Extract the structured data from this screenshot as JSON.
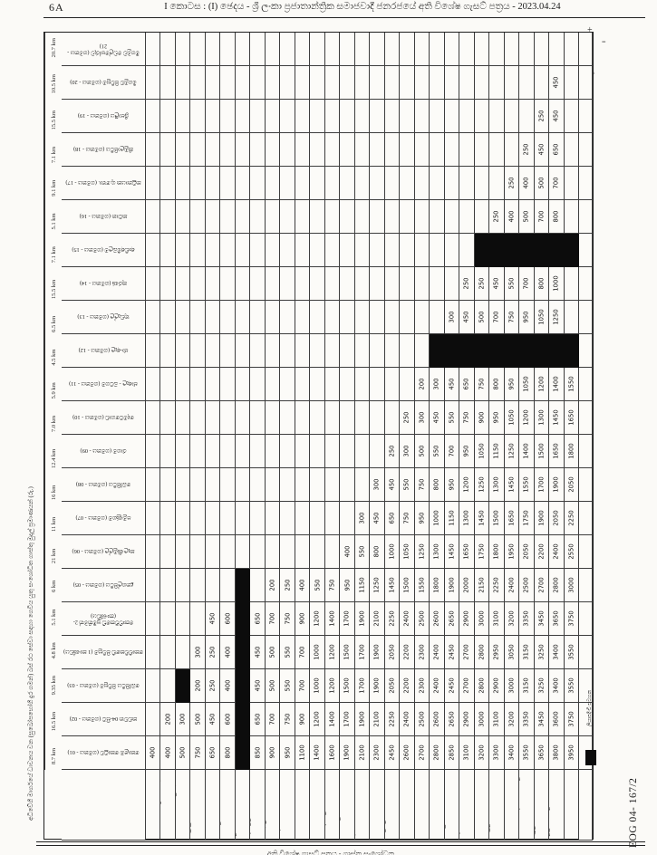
{
  "page": {
    "number": "6A",
    "title": "I කොටස : (I) ඡෙදය - ශ්‍රී ලංකා ප්‍රජාතාන්ත්‍රික සමාජවාදී ජනරජයේ අති විශේෂ ගැසට් පත්‍රය - 2023.04.24"
  },
  "table": {
    "left_title": "අධිවේගී මාර්ගයේ ධාවනය වන (සුඛෝපභෝගී දුර ගමන්) බස් රථ සේවා සඳහා ගෙවිය යුතු සංශෝධිත ගාස්තු මුදල් ප්‍රමාණයන් (රු.)",
    "km_distances": [
      "20.7 km",
      "10.5 km",
      "15.5 km",
      "7.1 km",
      "9.1 km",
      "5.1 km",
      "7.1 km",
      "15.5 km",
      "6.5 km",
      "4.5 km",
      "5.9 km",
      "7.0 km",
      "12.4 km",
      "16 km",
      "11 km",
      "21 km",
      "6 km",
      "5.1 km",
      "4.8 km",
      "9.35 km",
      "16.5 km",
      "8.7 km"
    ],
    "row_labels": [
      "මීගමුව ඩෙල්පෝරුව (ගමනය - 21)",
      "මීගමුව පිවිසුම (ගමනය - 20)",
      "ශ්‍රීපාලිය (ගමනය - 19)",
      "කිඹුලාපිටිය (ගමනය - 18)",
      "කටුනායක ගු.තො. (ගමනය - 17)",
      "කටාන (ගමනය - 16)",
      "ආඬිඅම්බලම (ගමනය - 15)",
      "කුරණ (ගමනය - 14)",
      "තුඩැල්ල (ගමනය - 13)",
      "ජා-ඇල (ගමනය - 12)",
      "ජාඇල - බටගම (ගමනය - 11)",
      "දෙමටගොඩ (ගමනය - 10)",
      "රාගම (ගමනය - 09)",
      "බෝපිටිය (ගමනය - 08)",
      "පමුණුගම (ගමනය - 07)",
      "කැලණිමුල්ල (ගමනය - 06)",
      "දුනගල්පිටිය (ගමනය - 05)",
      "කොච්චිකඩේ ප්‍රමිතිමත් 2-(කාණ්ඩය)",
      "කොච්චිකඩේ පිවිසුම (1 කාණ්ඩය)",
      "බෝපිටිය පිවිසුම (ගමනය - 03)",
      "කඩවත 04-සිට (ගමනය - 02)",
      "කොළඹ කොටුව (ගමනය - 01)"
    ],
    "column_labels": [
      "කි-මී",
      "කොච්චිකඩේ ප්‍රමිතිමත් (කාණ්ඩ 1)",
      "කොච්චිකඩේ පිවිසුම (කාණ්ඩ 2)",
      "පමුණුගම",
      "බෝපිටිය",
      "දුනගල්පිටිය",
      "උස්වැටකෙයියාව",
      "තුඩැල්ල",
      "ජා-ඇල",
      "කඳාන",
      "බටුවත්ත",
      "මහබාගේ",
      "මත්තුමගල",
      "කෙරවලපිටිය",
      "දික්ඕවිට",
      "හේකිත්ත",
      "බලගල",
      "පෑගොඩ",
      "කොස්වත්ත",
      "කඩවත - ගොඩපිටිය",
      "මීගමුව",
      "කුරණ",
      "වේයන්ගොඩ",
      "කිඹුලාපිටිය",
      "කටාන",
      "කටුනායක ගුවන්තොටුපළ",
      "දිවුලපිටිය",
      "උඩුගම්පොළ",
      "ගම්පහ මීගේ"
    ],
    "fare_matrix": [
      [
        "",
        "",
        "",
        "",
        "",
        "",
        "",
        "",
        "",
        "",
        "",
        "",
        "",
        "",
        "",
        "",
        "",
        "",
        "",
        "",
        "",
        "",
        "",
        "",
        "",
        "",
        "",
        "",
        ""
      ],
      [
        "",
        "",
        "",
        "",
        "",
        "",
        "",
        "",
        "",
        "",
        "",
        "",
        "",
        "",
        "",
        "",
        "",
        "",
        "",
        "",
        "",
        "",
        "",
        "",
        "",
        "",
        "",
        "450",
        ""
      ],
      [
        "",
        "",
        "",
        "",
        "",
        "",
        "",
        "",
        "",
        "",
        "",
        "",
        "",
        "",
        "",
        "",
        "",
        "",
        "",
        "",
        "",
        "",
        "",
        "",
        "",
        "",
        "250",
        "450",
        ""
      ],
      [
        "",
        "",
        "",
        "",
        "",
        "",
        "",
        "",
        "",
        "",
        "",
        "",
        "",
        "",
        "",
        "",
        "",
        "",
        "",
        "",
        "",
        "",
        "",
        "",
        "",
        "250",
        "450",
        "650",
        ""
      ],
      [
        "",
        "",
        "",
        "",
        "",
        "",
        "",
        "",
        "",
        "",
        "",
        "",
        "",
        "",
        "",
        "",
        "",
        "",
        "",
        "",
        "",
        "",
        "",
        "",
        "250",
        "400",
        "500",
        "700",
        ""
      ],
      [
        "",
        "",
        "",
        "",
        "",
        "",
        "",
        "",
        "",
        "",
        "",
        "",
        "",
        "",
        "",
        "",
        "",
        "",
        "",
        "",
        "",
        "",
        "",
        "250",
        "400",
        "500",
        "700",
        "800",
        ""
      ],
      [
        "",
        "",
        "",
        "",
        "",
        "",
        "",
        "",
        "",
        "",
        "",
        "",
        "",
        "",
        "",
        "",
        "",
        "",
        "",
        "",
        "",
        "",
        "B",
        "B",
        "B",
        "B",
        "B",
        "B",
        "B"
      ],
      [
        "",
        "",
        "",
        "",
        "",
        "",
        "",
        "",
        "",
        "",
        "",
        "",
        "",
        "",
        "",
        "",
        "",
        "",
        "",
        "",
        "",
        "250",
        "250",
        "450",
        "550",
        "700",
        "800",
        "1000",
        ""
      ],
      [
        "",
        "",
        "",
        "",
        "",
        "",
        "",
        "",
        "",
        "",
        "",
        "",
        "",
        "",
        "",
        "",
        "",
        "",
        "",
        "",
        "300",
        "450",
        "500",
        "700",
        "750",
        "950",
        "1050",
        "1250",
        ""
      ],
      [
        "",
        "",
        "",
        "",
        "",
        "",
        "",
        "",
        "",
        "",
        "",
        "",
        "",
        "",
        "",
        "",
        "",
        "",
        "",
        "B",
        "B",
        "B",
        "B",
        "B",
        "B",
        "B",
        "B",
        "B",
        "B"
      ],
      [
        "",
        "",
        "",
        "",
        "",
        "",
        "",
        "",
        "",
        "",
        "",
        "",
        "",
        "",
        "",
        "",
        "",
        "",
        "200",
        "300",
        "450",
        "650",
        "750",
        "800",
        "950",
        "1050",
        "1200",
        "1400",
        "1550"
      ],
      [
        "",
        "",
        "",
        "",
        "",
        "",
        "",
        "",
        "",
        "",
        "",
        "",
        "",
        "",
        "",
        "",
        "",
        "250",
        "300",
        "450",
        "550",
        "750",
        "900",
        "950",
        "1050",
        "1200",
        "1300",
        "1450",
        "1650"
      ],
      [
        "",
        "",
        "",
        "",
        "",
        "",
        "",
        "",
        "",
        "",
        "",
        "",
        "",
        "",
        "",
        "",
        "250",
        "300",
        "500",
        "550",
        "700",
        "950",
        "1050",
        "1150",
        "1250",
        "1400",
        "1500",
        "1650",
        "1800"
      ],
      [
        "",
        "",
        "",
        "",
        "",
        "",
        "",
        "",
        "",
        "",
        "",
        "",
        "",
        "",
        "",
        "300",
        "450",
        "550",
        "750",
        "800",
        "950",
        "1200",
        "1250",
        "1300",
        "1450",
        "1550",
        "1700",
        "1900",
        "2050"
      ],
      [
        "",
        "",
        "",
        "",
        "",
        "",
        "",
        "",
        "",
        "",
        "",
        "",
        "",
        "",
        "300",
        "450",
        "650",
        "750",
        "950",
        "1000",
        "1150",
        "1300",
        "1450",
        "1500",
        "1650",
        "1750",
        "1900",
        "2050",
        "2250"
      ],
      [
        "",
        "",
        "",
        "",
        "",
        "",
        "",
        "",
        "",
        "",
        "",
        "",
        "",
        "400",
        "550",
        "800",
        "1000",
        "1050",
        "1250",
        "1300",
        "1450",
        "1650",
        "1750",
        "1800",
        "1950",
        "2050",
        "2200",
        "2400",
        "2550"
      ],
      [
        "",
        "",
        "",
        "",
        "",
        "",
        "B",
        "",
        "200",
        "250",
        "400",
        "550",
        "750",
        "950",
        "1150",
        "1250",
        "1450",
        "1500",
        "1550",
        "1800",
        "1900",
        "2000",
        "2150",
        "2250",
        "2400",
        "2500",
        "2700",
        "2800",
        "3000"
      ],
      [
        "",
        "",
        "",
        "",
        "450",
        "600",
        "B",
        "650",
        "700",
        "750",
        "900",
        "1200",
        "1400",
        "1700",
        "1900",
        "2100",
        "2250",
        "2400",
        "2500",
        "2600",
        "2650",
        "2900",
        "3000",
        "3100",
        "3200",
        "3350",
        "3450",
        "3650",
        "3750"
      ],
      [
        "",
        "",
        "",
        "300",
        "250",
        "400",
        "B",
        "450",
        "500",
        "550",
        "700",
        "1000",
        "1200",
        "1500",
        "1700",
        "1900",
        "2050",
        "2200",
        "2300",
        "2400",
        "2450",
        "2700",
        "2800",
        "2950",
        "3050",
        "3150",
        "3250",
        "3400",
        "3550"
      ],
      [
        "",
        "",
        "B",
        "200",
        "250",
        "400",
        "B",
        "450",
        "500",
        "550",
        "700",
        "1000",
        "1200",
        "1500",
        "1700",
        "1900",
        "2050",
        "2200",
        "2300",
        "2400",
        "2450",
        "2700",
        "2800",
        "2900",
        "3000",
        "3150",
        "3250",
        "3400",
        "3550"
      ],
      [
        "",
        "200",
        "300",
        "500",
        "450",
        "600",
        "B",
        "650",
        "700",
        "750",
        "900",
        "1200",
        "1400",
        "1700",
        "1900",
        "2100",
        "2250",
        "2400",
        "2500",
        "2600",
        "2650",
        "2900",
        "3000",
        "3100",
        "3200",
        "3350",
        "3450",
        "3600",
        "3750"
      ],
      [
        "400",
        "400",
        "500",
        "750",
        "650",
        "800",
        "B",
        "850",
        "900",
        "950",
        "1100",
        "1400",
        "1600",
        "1900",
        "2100",
        "2300",
        "2450",
        "2600",
        "2700",
        "2800",
        "2850",
        "3100",
        "3200",
        "3300",
        "3400",
        "3550",
        "3650",
        "3800",
        "3950"
      ]
    ]
  },
  "footer": {
    "doc_ref": "EOG 04- 167/2",
    "side_note": "ලියාපදිංචි සටහන",
    "partial_text": "අති විශේෂ ගැසට් පත්‍රය - ගාස්තු සංශෝධන"
  },
  "marks": {
    "plus": "+",
    "colon": "=",
    "tick": "ᵗ"
  }
}
